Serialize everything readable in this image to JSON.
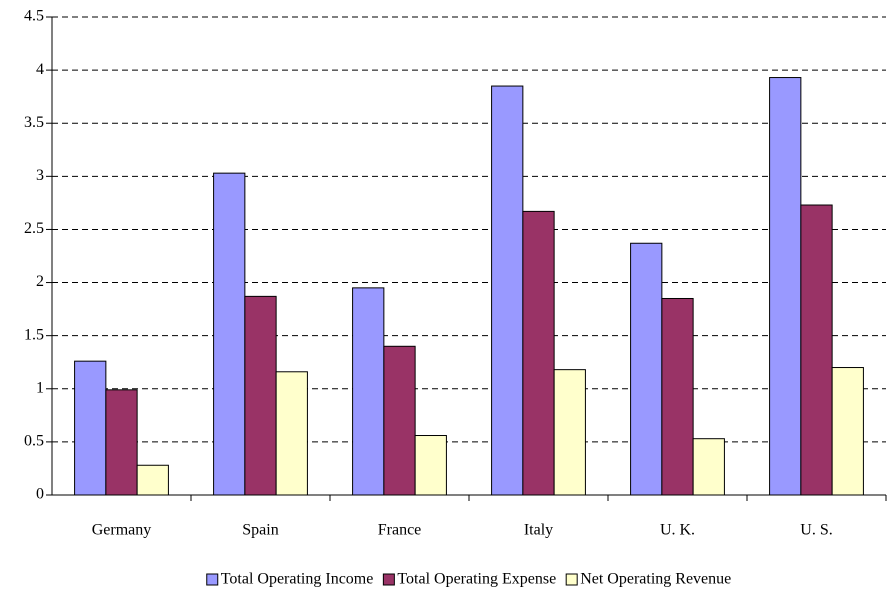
{
  "chart_data": {
    "type": "bar",
    "categories": [
      "Germany",
      "Spain",
      "France",
      "Italy",
      "U. K.",
      "U. S."
    ],
    "series": [
      {
        "name": "Total Operating Income",
        "color": "#9999ff",
        "values": [
          1.26,
          3.03,
          1.95,
          3.85,
          2.37,
          3.93
        ]
      },
      {
        "name": "Total Operating Expense",
        "color": "#993366",
        "values": [
          0.99,
          1.87,
          1.4,
          2.67,
          1.85,
          2.73
        ]
      },
      {
        "name": "Net Operating Revenue",
        "color": "#ffffcc",
        "values": [
          0.28,
          1.16,
          0.56,
          1.18,
          0.53,
          1.2
        ]
      }
    ],
    "ylim": [
      0,
      4.5
    ],
    "yticks": [
      0,
      0.5,
      1,
      1.5,
      2,
      2.5,
      3,
      3.5,
      4,
      4.5
    ],
    "grid": true,
    "legend": "bottom"
  }
}
